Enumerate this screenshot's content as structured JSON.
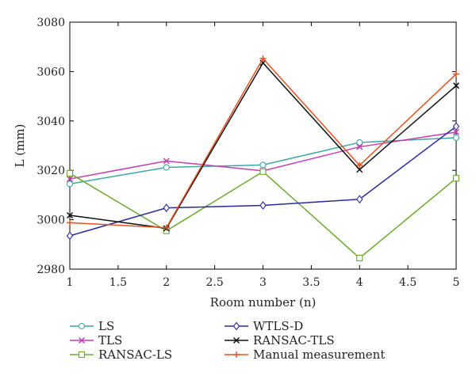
{
  "chart_data": {
    "type": "line",
    "title": "",
    "xlabel": "Room number (n)",
    "ylabel": "L (mm)",
    "xlim": [
      1,
      5
    ],
    "ylim": [
      2980,
      3080
    ],
    "xticks": [
      "1",
      "1.5",
      "2",
      "2.5",
      "3",
      "3.5",
      "4",
      "4.5",
      "5"
    ],
    "yticks": [
      "2980",
      "3000",
      "3020",
      "3040",
      "3060",
      "3080"
    ],
    "grid": false,
    "legend_position": "bottom",
    "x": [
      1,
      2,
      3,
      4,
      5
    ],
    "series": [
      {
        "name": "LS",
        "color": "#3fa6a6",
        "marker": "circle",
        "values": [
          3014.5,
          3021.2,
          3022.2,
          3031.3,
          3033.2
        ]
      },
      {
        "name": "TLS",
        "color": "#c040b0",
        "marker": "x",
        "values": [
          3016.5,
          3023.8,
          3019.8,
          3029.5,
          3035.5
        ]
      },
      {
        "name": "RANSAC-LS",
        "color": "#6aaa30",
        "marker": "square",
        "values": [
          3018.8,
          2995.5,
          3019.5,
          2984.5,
          3016.8
        ]
      },
      {
        "name": "WTLS-D",
        "color": "#2a2a9a",
        "marker": "diamond",
        "values": [
          2993.5,
          3004.8,
          3005.8,
          3008.3,
          3037.8
        ]
      },
      {
        "name": "RANSAC-TLS",
        "color": "#111111",
        "marker": "x",
        "values": [
          3001.8,
          2996.5,
          3063.5,
          3020.3,
          3054.3
        ]
      },
      {
        "name": "Manual measurement",
        "color": "#e8501e",
        "marker": "plus",
        "values": [
          2998.8,
          2996.8,
          3065.3,
          3022.0,
          3059.0
        ]
      }
    ]
  }
}
